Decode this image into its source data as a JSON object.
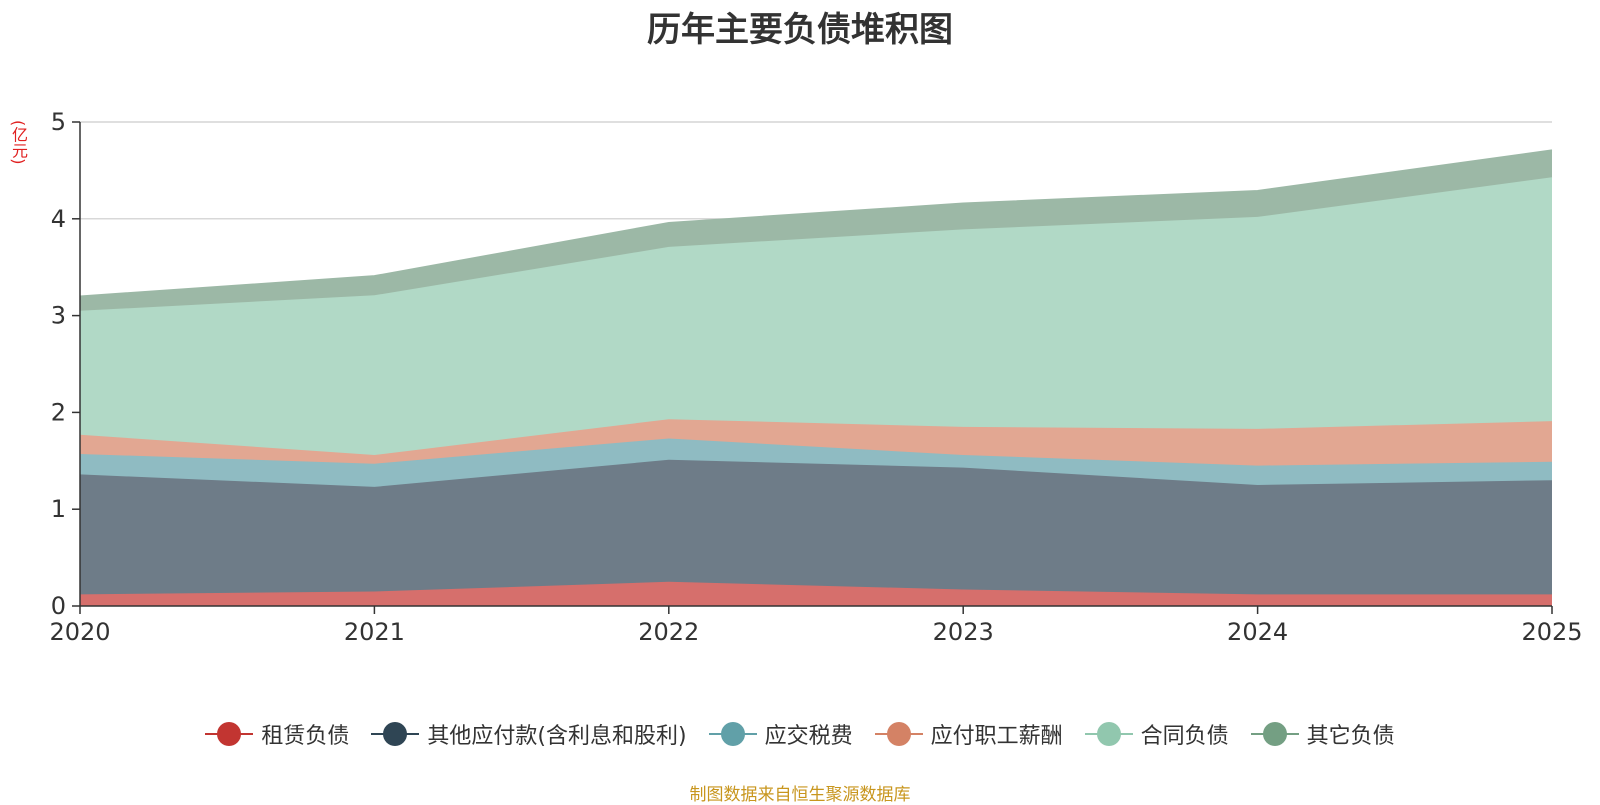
{
  "title": "历年主要负债堆积图",
  "unit_label": "(亿元)",
  "source_text": "制图数据来自恒生聚源数据库",
  "chart_data": {
    "type": "area",
    "stacked": true,
    "title": "历年主要负债堆积图",
    "ylabel": "(亿元)",
    "x": [
      "2020",
      "2021",
      "2022",
      "2023",
      "2024",
      "2025"
    ],
    "ylim": [
      0,
      5
    ],
    "yticks": [
      0,
      1,
      2,
      3,
      4,
      5
    ],
    "grid": true,
    "legend_position": "bottom",
    "series": [
      {
        "name": "租赁负债",
        "color": "#c23531",
        "fill": "#d66f6c",
        "values": [
          0.12,
          0.15,
          0.25,
          0.17,
          0.12,
          0.12
        ]
      },
      {
        "name": "其他应付款(含利息和股利)",
        "color": "#2f4554",
        "fill": "#6e7c88",
        "values": [
          1.24,
          1.08,
          1.26,
          1.26,
          1.13,
          1.18
        ]
      },
      {
        "name": "应交税费",
        "color": "#61a0a8",
        "fill": "#8fbbc2",
        "values": [
          0.21,
          0.24,
          0.22,
          0.13,
          0.2,
          0.19
        ]
      },
      {
        "name": "应付职工薪酬",
        "color": "#d48265",
        "fill": "#e2a792",
        "values": [
          0.2,
          0.09,
          0.2,
          0.29,
          0.38,
          0.42
        ]
      },
      {
        "name": "合同负债",
        "color": "#91c7ae",
        "fill": "#b1d9c6",
        "values": [
          1.28,
          1.65,
          1.78,
          2.04,
          2.19,
          2.52
        ]
      },
      {
        "name": "其它负债",
        "color": "#749f83",
        "fill": "#9cb8a6",
        "values": [
          0.15,
          0.2,
          0.25,
          0.27,
          0.27,
          0.28
        ]
      }
    ]
  }
}
